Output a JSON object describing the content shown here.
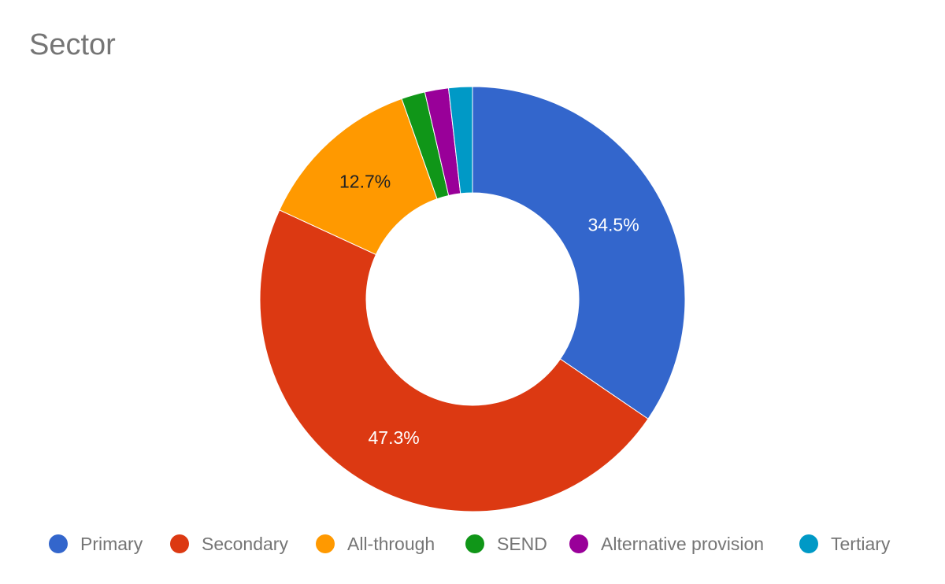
{
  "chart_data": {
    "type": "pie",
    "title": "Sector",
    "donut": true,
    "legend_position": "bottom",
    "categories": [
      "Primary",
      "Secondary",
      "All-through",
      "SEND",
      "Alternative provision",
      "Tertiary"
    ],
    "values": [
      34.5,
      47.3,
      12.7,
      1.8,
      1.8,
      1.8
    ],
    "unit": "%",
    "data_labels": [
      "34.5%",
      "47.3%",
      "12.7%",
      "",
      "",
      ""
    ],
    "label_colors": [
      "#ffffff",
      "#ffffff",
      "#222222",
      "#ffffff",
      "#ffffff",
      "#ffffff"
    ],
    "colors": [
      "#3366cc",
      "#dc3912",
      "#ff9900",
      "#109618",
      "#990099",
      "#0099c6"
    ]
  }
}
